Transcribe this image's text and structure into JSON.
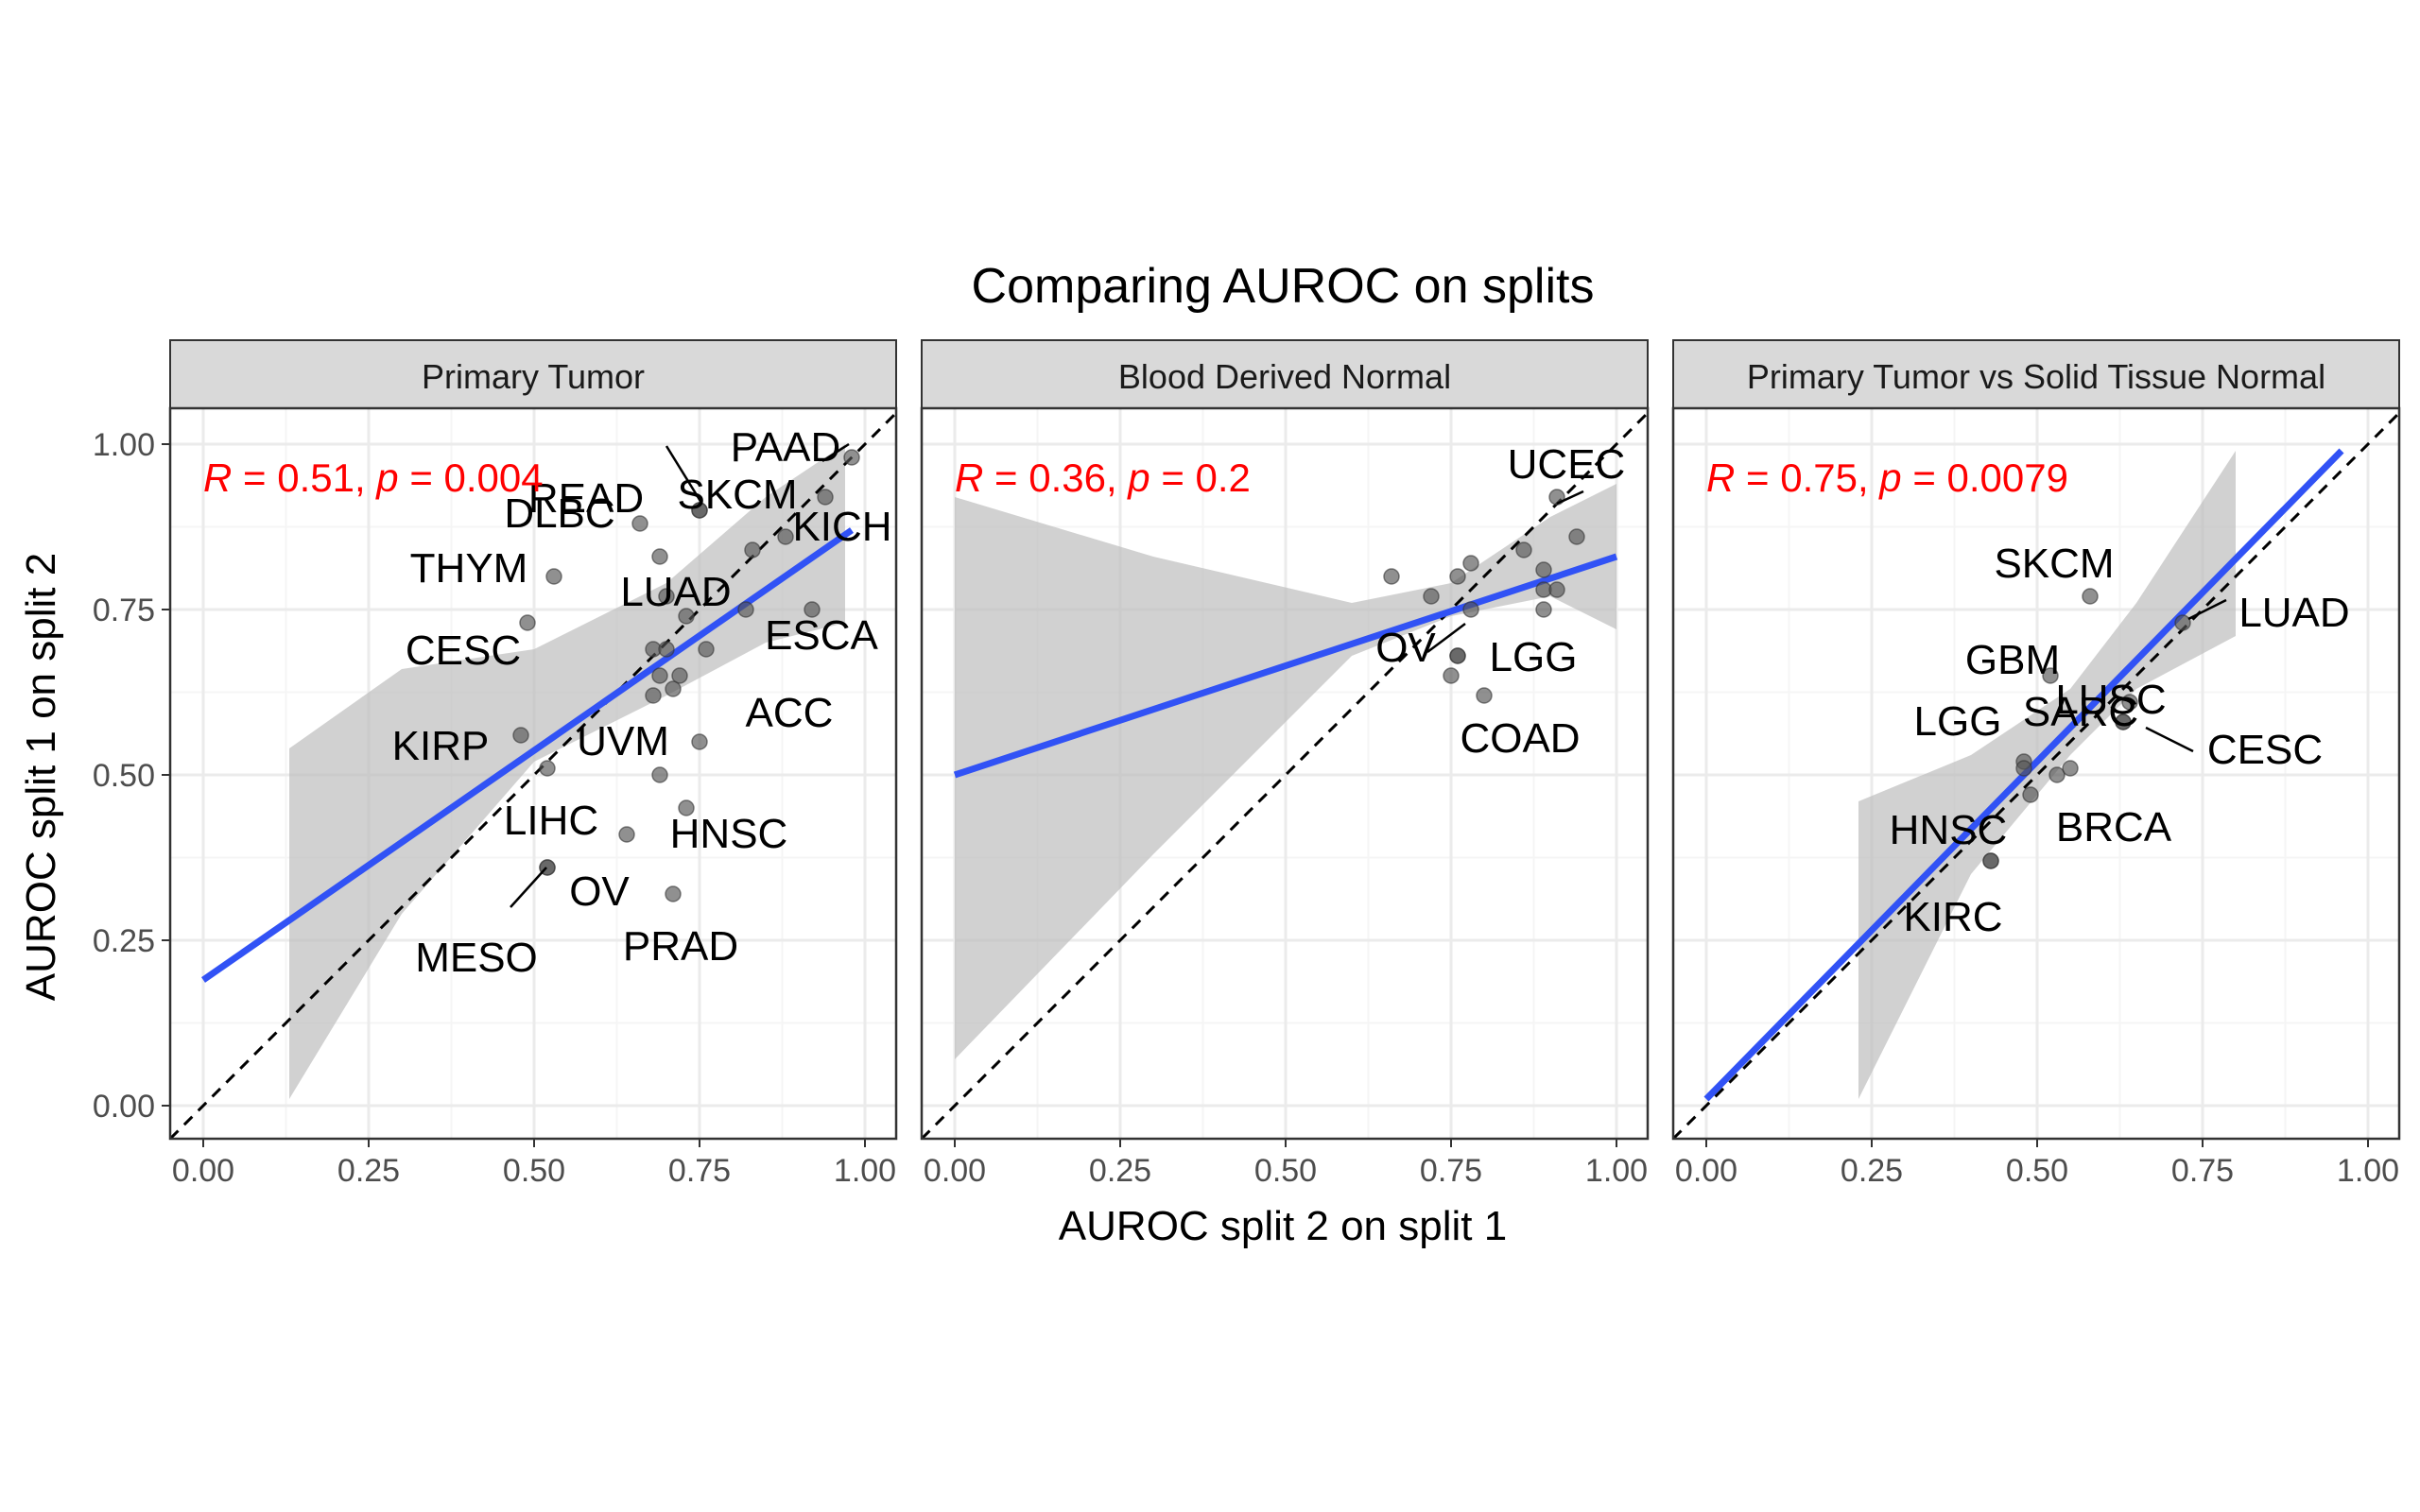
{
  "figure": {
    "title": "Comparing AUROC on splits",
    "xlabel": "AUROC split 2 on split 1",
    "ylabel": "AUROC split 1 on split 2"
  },
  "colors": {
    "background": "#ffffff",
    "panel_border": "#333333",
    "strip_fill": "#d9d9d9",
    "grid_major": "#ebebeb",
    "grid_minor": "#f5f5f5",
    "point": "#555555",
    "fit_line": "#3152f5",
    "ribbon": "#bdbdbd",
    "identity_line": "#000000",
    "stat_text": "#ff0000",
    "label_text": "#000000",
    "axis_text": "#4d4d4d"
  },
  "chart_data": [
    {
      "type": "scatter",
      "title": "Primary Tumor",
      "stat": {
        "r_symbol": "R",
        "r_value": "0.51",
        "p_symbol": "p",
        "p_value": "0.004"
      },
      "xlim": [
        0,
        1
      ],
      "ylim": [
        0,
        1
      ],
      "xticks": [
        "0.00",
        "0.25",
        "0.50",
        "0.75",
        "1.00"
      ],
      "yticks": [
        "0.00",
        "0.25",
        "0.50",
        "0.75",
        "1.00"
      ],
      "fit": {
        "x0": 0.0,
        "y0": 0.19,
        "x1": 0.98,
        "y1": 0.87
      },
      "ribbon": [
        [
          0.13,
          0.01,
          0.54
        ],
        [
          0.3,
          0.29,
          0.66
        ],
        [
          0.5,
          0.52,
          0.69
        ],
        [
          0.7,
          0.62,
          0.79
        ],
        [
          0.85,
          0.7,
          0.92
        ],
        [
          0.97,
          0.73,
          1.0
        ]
      ],
      "points": [
        {
          "x": 0.98,
          "y": 0.98,
          "label": "PAAD"
        },
        {
          "x": 0.75,
          "y": 0.9,
          "label": "READ"
        },
        {
          "x": 0.75,
          "y": 0.9,
          "label": "SKCM"
        },
        {
          "x": 0.66,
          "y": 0.88,
          "label": "DLBC"
        },
        {
          "x": 0.88,
          "y": 0.86,
          "label": "KICH"
        },
        {
          "x": 0.53,
          "y": 0.8,
          "label": "THYM"
        },
        {
          "x": 0.7,
          "y": 0.77,
          "label": "LUAD"
        },
        {
          "x": 0.92,
          "y": 0.75,
          "label": "ESCA"
        },
        {
          "x": 0.49,
          "y": 0.73,
          "label": "CESC"
        },
        {
          "x": 0.75,
          "y": 0.55,
          "label": "ACC"
        },
        {
          "x": 0.48,
          "y": 0.56,
          "label": "KIRP"
        },
        {
          "x": 0.52,
          "y": 0.51,
          "label": "UVM"
        },
        {
          "x": 0.64,
          "y": 0.41,
          "label": "LIHC"
        },
        {
          "x": 0.73,
          "y": 0.45,
          "label": "HNSC"
        },
        {
          "x": 0.52,
          "y": 0.36,
          "label": "OV"
        },
        {
          "x": 0.52,
          "y": 0.36,
          "label": "MESO"
        },
        {
          "x": 0.71,
          "y": 0.32,
          "label": "PRAD"
        },
        {
          "x": 0.94,
          "y": 0.92,
          "label": ""
        },
        {
          "x": 0.83,
          "y": 0.84,
          "label": ""
        },
        {
          "x": 0.69,
          "y": 0.83,
          "label": ""
        },
        {
          "x": 0.73,
          "y": 0.74,
          "label": ""
        },
        {
          "x": 0.82,
          "y": 0.75,
          "label": ""
        },
        {
          "x": 0.68,
          "y": 0.69,
          "label": ""
        },
        {
          "x": 0.7,
          "y": 0.69,
          "label": ""
        },
        {
          "x": 0.76,
          "y": 0.69,
          "label": ""
        },
        {
          "x": 0.69,
          "y": 0.65,
          "label": ""
        },
        {
          "x": 0.72,
          "y": 0.65,
          "label": ""
        },
        {
          "x": 0.71,
          "y": 0.63,
          "label": ""
        },
        {
          "x": 0.68,
          "y": 0.62,
          "label": ""
        },
        {
          "x": 0.69,
          "y": 0.5,
          "label": ""
        }
      ]
    },
    {
      "type": "scatter",
      "title": "Blood Derived Normal",
      "stat": {
        "r_symbol": "R",
        "r_value": "0.36",
        "p_symbol": "p",
        "p_value": "0.2"
      },
      "xlim": [
        0,
        1
      ],
      "ylim": [
        0,
        1
      ],
      "xticks": [
        "0.00",
        "0.25",
        "0.50",
        "0.75",
        "1.00"
      ],
      "yticks": [
        "0.00",
        "0.25",
        "0.50",
        "0.75",
        "1.00"
      ],
      "fit": {
        "x0": 0.0,
        "y0": 0.5,
        "x1": 1.0,
        "y1": 0.83
      },
      "ribbon": [
        [
          0.0,
          0.07,
          0.92
        ],
        [
          0.3,
          0.38,
          0.83
        ],
        [
          0.6,
          0.68,
          0.76
        ],
        [
          0.75,
          0.74,
          0.79
        ],
        [
          0.9,
          0.77,
          0.89
        ],
        [
          1.0,
          0.72,
          0.94
        ]
      ],
      "points": [
        {
          "x": 0.91,
          "y": 0.92,
          "label": "UCEC"
        },
        {
          "x": 0.76,
          "y": 0.68,
          "label": "OV"
        },
        {
          "x": 0.76,
          "y": 0.68,
          "label": "LGG"
        },
        {
          "x": 0.8,
          "y": 0.62,
          "label": "COAD"
        },
        {
          "x": 0.66,
          "y": 0.8,
          "label": ""
        },
        {
          "x": 0.72,
          "y": 0.77,
          "label": ""
        },
        {
          "x": 0.76,
          "y": 0.8,
          "label": ""
        },
        {
          "x": 0.78,
          "y": 0.82,
          "label": ""
        },
        {
          "x": 0.86,
          "y": 0.84,
          "label": ""
        },
        {
          "x": 0.89,
          "y": 0.81,
          "label": ""
        },
        {
          "x": 0.94,
          "y": 0.86,
          "label": ""
        },
        {
          "x": 0.89,
          "y": 0.78,
          "label": ""
        },
        {
          "x": 0.91,
          "y": 0.78,
          "label": ""
        },
        {
          "x": 0.89,
          "y": 0.75,
          "label": ""
        },
        {
          "x": 0.78,
          "y": 0.75,
          "label": ""
        },
        {
          "x": 0.75,
          "y": 0.65,
          "label": ""
        }
      ]
    },
    {
      "type": "scatter",
      "title": "Primary Tumor vs Solid Tissue Normal",
      "stat": {
        "r_symbol": "R",
        "r_value": "0.75",
        "p_symbol": "p",
        "p_value": "0.0079"
      },
      "xlim": [
        0,
        1
      ],
      "ylim": [
        0,
        1
      ],
      "xticks": [
        "0.00",
        "0.25",
        "0.50",
        "0.75",
        "1.00"
      ],
      "yticks": [
        "0.00",
        "0.25",
        "0.50",
        "0.75",
        "1.00"
      ],
      "fit": {
        "x0": 0.0,
        "y0": 0.01,
        "x1": 0.96,
        "y1": 0.99
      },
      "ribbon": [
        [
          0.23,
          0.01,
          0.46
        ],
        [
          0.4,
          0.35,
          0.53
        ],
        [
          0.55,
          0.53,
          0.63
        ],
        [
          0.65,
          0.63,
          0.76
        ],
        [
          0.8,
          0.71,
          0.99
        ]
      ],
      "points": [
        {
          "x": 0.58,
          "y": 0.77,
          "label": "SKCM"
        },
        {
          "x": 0.72,
          "y": 0.73,
          "label": "LUAD"
        },
        {
          "x": 0.52,
          "y": 0.65,
          "label": "GBM"
        },
        {
          "x": 0.64,
          "y": 0.61,
          "label": "LUSC"
        },
        {
          "x": 0.48,
          "y": 0.52,
          "label": "LGG"
        },
        {
          "x": 0.63,
          "y": 0.58,
          "label": "SARC"
        },
        {
          "x": 0.63,
          "y": 0.58,
          "label": "CESC"
        },
        {
          "x": 0.53,
          "y": 0.5,
          "label": "BRCA"
        },
        {
          "x": 0.43,
          "y": 0.37,
          "label": "HNSC"
        },
        {
          "x": 0.43,
          "y": 0.37,
          "label": "KIRC"
        },
        {
          "x": 0.48,
          "y": 0.51,
          "label": ""
        },
        {
          "x": 0.49,
          "y": 0.47,
          "label": ""
        },
        {
          "x": 0.55,
          "y": 0.51,
          "label": ""
        }
      ]
    }
  ]
}
